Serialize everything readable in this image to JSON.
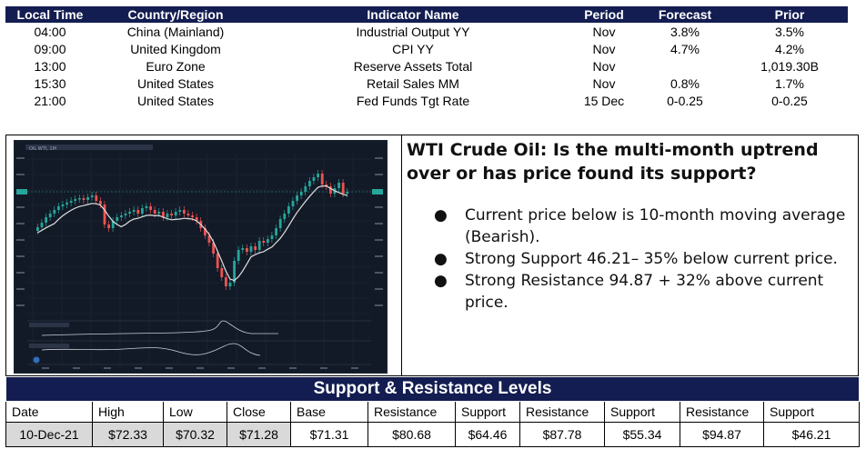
{
  "calendar": {
    "headers": [
      "Local Time",
      "Country/Region",
      "Indicator Name",
      "Period",
      "Forecast",
      "Prior"
    ],
    "rows": [
      [
        "04:00",
        "China (Mainland)",
        "Industrial Output YY",
        "Nov",
        "3.8%",
        "3.5%"
      ],
      [
        "09:00",
        "United Kingdom",
        "CPI YY",
        "Nov",
        "4.7%",
        "4.2%"
      ],
      [
        "13:00",
        "Euro Zone",
        "Reserve Assets Total",
        "Nov",
        "",
        "1,019.30B"
      ],
      [
        "15:30",
        "United States",
        "Retail Sales MM",
        "Nov",
        "0.8%",
        "1.7%"
      ],
      [
        "21:00",
        "United States",
        "Fed Funds Tgt Rate",
        "15 Dec",
        "0-0.25",
        "0-0.25"
      ]
    ]
  },
  "commentary": {
    "headline": "WTI Crude Oil: Is the multi-month uptrend over or has price found its support?",
    "bullets": [
      "Current price below is 10-month moving average (Bearish).",
      "Strong Support 46.21– 35% below current price.",
      "Strong Resistance 94.87 + 32% above current price."
    ],
    "bullet_symbol": "●"
  },
  "chart": {
    "instrument": "OIL WTI, 1M",
    "colors": {
      "up": "#26a69a",
      "down": "#ef5350",
      "background": "#131a27",
      "ma": "#e0e0e0"
    }
  },
  "levels": {
    "title": "Support & Resistance Levels",
    "headers": [
      "Date",
      "High",
      "Low",
      "Close",
      "Base",
      "Resistance",
      "Support",
      "Resistance",
      "Support",
      "Resistance",
      "Support"
    ],
    "values": [
      "10-Dec-21",
      "$72.33",
      "$70.32",
      "$71.28",
      "$71.31",
      "$80.68",
      "$64.46",
      "$87.78",
      "$55.34",
      "$94.87",
      "$46.21"
    ]
  }
}
